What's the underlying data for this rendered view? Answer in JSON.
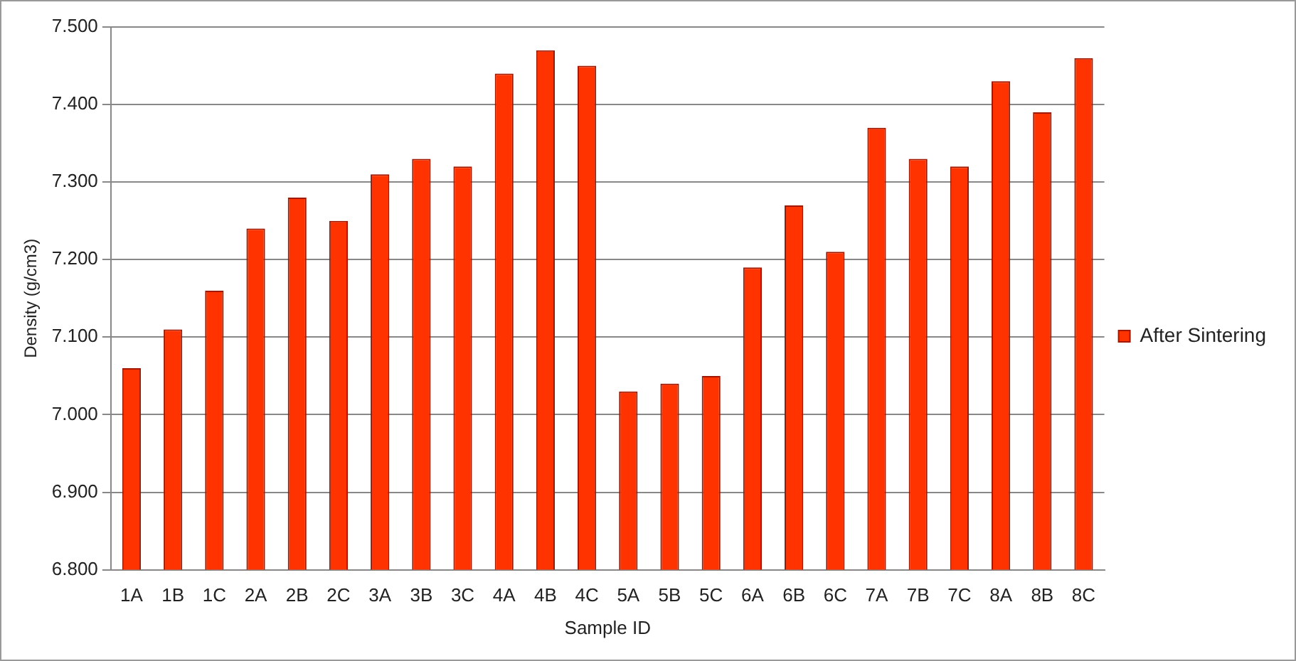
{
  "chart_data": {
    "type": "bar",
    "xlabel": "Sample ID",
    "ylabel": "Density (g/cm3)",
    "categories": [
      "1A",
      "1B",
      "1C",
      "2A",
      "2B",
      "2C",
      "3A",
      "3B",
      "3C",
      "4A",
      "4B",
      "4C",
      "5A",
      "5B",
      "5C",
      "6A",
      "6B",
      "6C",
      "7A",
      "7B",
      "7C",
      "8A",
      "8B",
      "8C"
    ],
    "series": [
      {
        "name": "After Sintering",
        "color": "#ff3300",
        "values": [
          7.06,
          7.11,
          7.16,
          7.24,
          7.28,
          7.25,
          7.31,
          7.33,
          7.32,
          7.44,
          7.47,
          7.45,
          7.03,
          7.04,
          7.05,
          7.19,
          7.27,
          7.21,
          7.37,
          7.33,
          7.32,
          7.43,
          7.39,
          7.46
        ]
      }
    ],
    "ylim": [
      6.8,
      7.5
    ],
    "yticks": [
      {
        "value": 6.8,
        "label": "6.800"
      },
      {
        "value": 6.9,
        "label": "6.900"
      },
      {
        "value": 7.0,
        "label": "7.000"
      },
      {
        "value": 7.1,
        "label": "7.100"
      },
      {
        "value": 7.2,
        "label": "7.200"
      },
      {
        "value": 7.3,
        "label": "7.300"
      },
      {
        "value": 7.4,
        "label": "7.400"
      },
      {
        "value": 7.5,
        "label": "7.500"
      }
    ],
    "grid": "y",
    "legend": "right"
  }
}
